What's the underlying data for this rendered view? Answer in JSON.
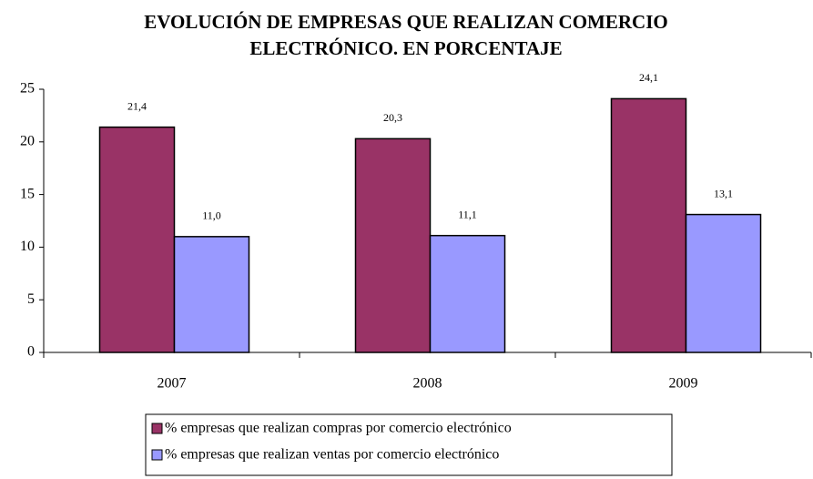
{
  "chart_data": {
    "type": "bar",
    "title": "EVOLUCIÓN DE EMPRESAS QUE REALIZAN COMERCIO ELECTRÓNICO. EN PORCENTAJE",
    "categories": [
      "2007",
      "2008",
      "2009"
    ],
    "series": [
      {
        "name": "% empresas que realizan compras por comercio electrónico",
        "color": "#993366",
        "values": [
          21.4,
          20.3,
          24.1
        ],
        "value_labels": [
          "21,4",
          "20,3",
          "24,1"
        ]
      },
      {
        "name": "% empresas que realizan ventas por comercio electrónico",
        "color": "#9999ff",
        "values": [
          11.0,
          11.1,
          13.1
        ],
        "value_labels": [
          "11,0",
          "11,1",
          "13,1"
        ]
      }
    ],
    "ylim": [
      0,
      25
    ],
    "yticks": [
      0,
      5,
      10,
      15,
      20,
      25
    ],
    "grid": false
  }
}
